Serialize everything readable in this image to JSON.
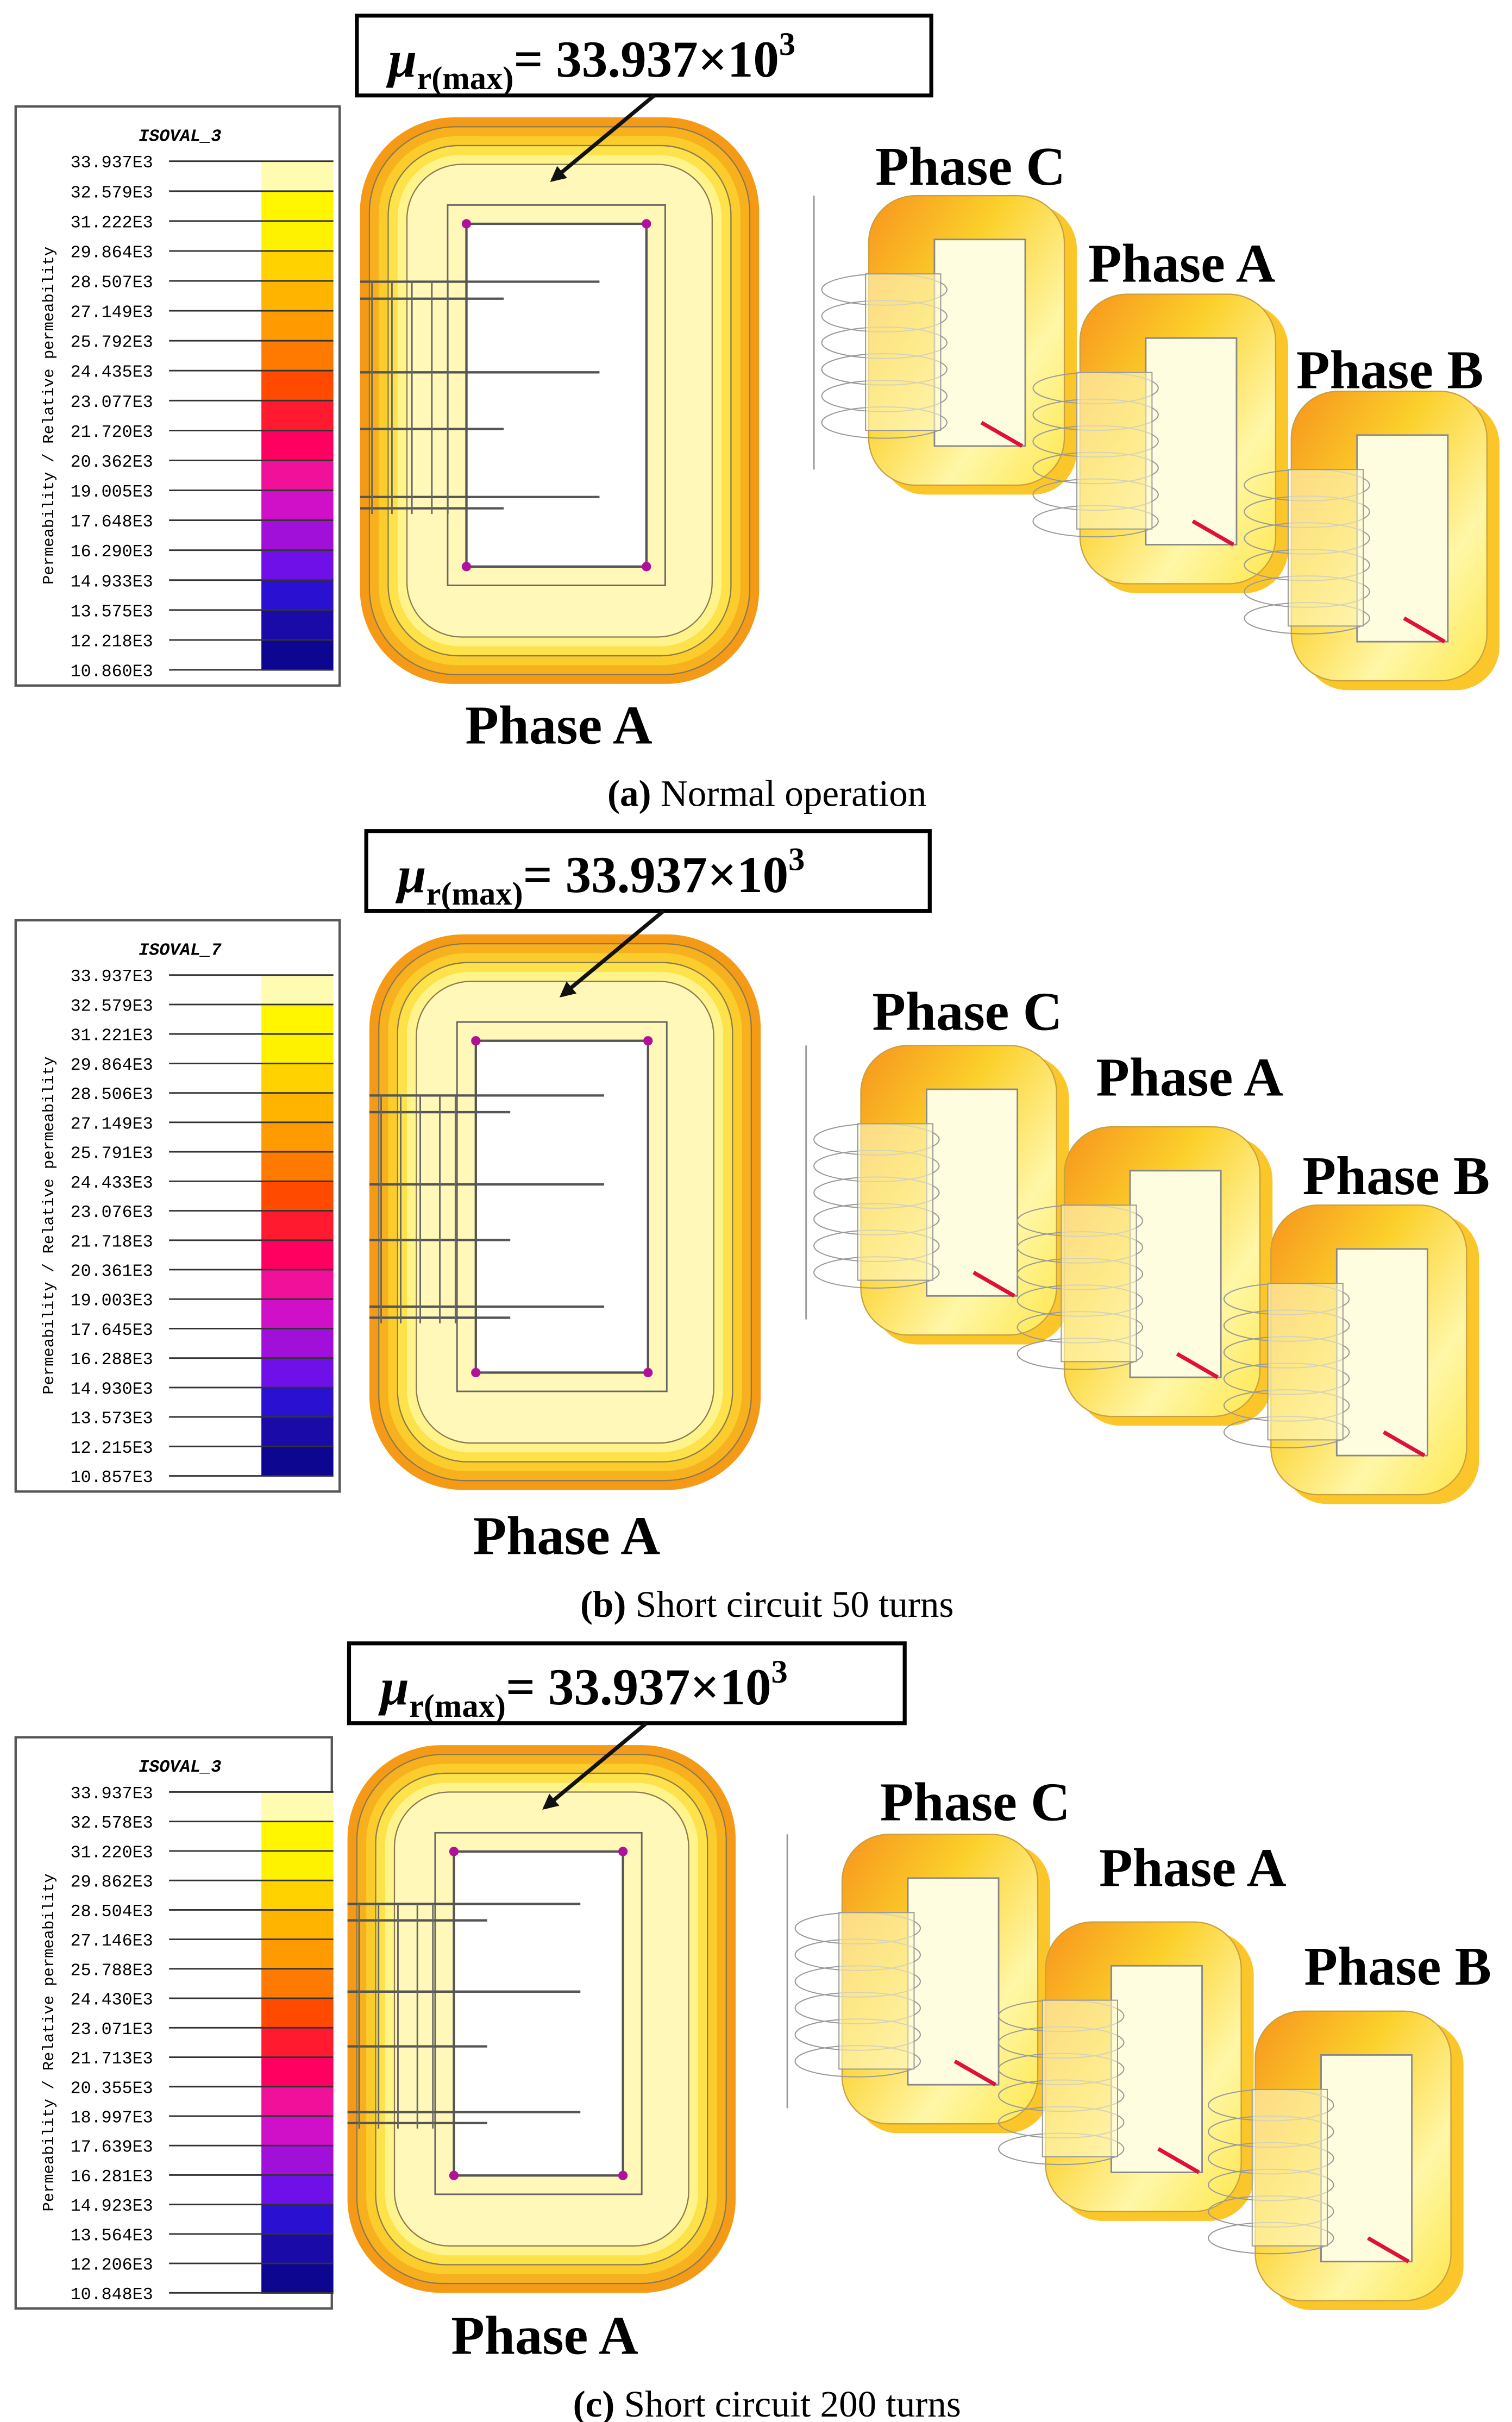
{
  "figure": {
    "panels": [
      {
        "legend": {
          "title": "ISOVAL_3",
          "axis_label": "Permeability / Relative permeability",
          "values": [
            "33.937E3",
            "32.579E3",
            "31.222E3",
            "29.864E3",
            "28.507E3",
            "27.149E3",
            "25.792E3",
            "24.435E3",
            "23.077E3",
            "21.720E3",
            "20.362E3",
            "19.005E3",
            "17.648E3",
            "16.290E3",
            "14.933E3",
            "13.575E3",
            "12.218E3",
            "10.860E3"
          ]
        },
        "annotation": {
          "symbol": "μ",
          "subscript": "r(max)",
          "value": "= 33.937×10",
          "superscript": "3"
        },
        "core_label": "Phase A",
        "phase_labels": [
          "Phase C",
          "Phase A",
          "Phase B"
        ],
        "caption": {
          "label": "(a)",
          "text": "Normal operation"
        }
      },
      {
        "legend": {
          "title": "ISOVAL_7",
          "axis_label": "Permeability / Relative permeability",
          "values": [
            "33.937E3",
            "32.579E3",
            "31.221E3",
            "29.864E3",
            "28.506E3",
            "27.149E3",
            "25.791E3",
            "24.433E3",
            "23.076E3",
            "21.718E3",
            "20.361E3",
            "19.003E3",
            "17.645E3",
            "16.288E3",
            "14.930E3",
            "13.573E3",
            "12.215E3",
            "10.857E3"
          ]
        },
        "annotation": {
          "symbol": "μ",
          "subscript": "r(max)",
          "value": "= 33.937×10",
          "superscript": "3"
        },
        "core_label": "Phase A",
        "phase_labels": [
          "Phase C",
          "Phase A",
          "Phase B"
        ],
        "caption": {
          "label": "(b)",
          "text": "Short circuit 50 turns"
        }
      },
      {
        "legend": {
          "title": "ISOVAL_3",
          "axis_label": "Permeability / Relative permeability",
          "values": [
            "33.937E3",
            "32.578E3",
            "31.220E3",
            "29.862E3",
            "28.504E3",
            "27.146E3",
            "25.788E3",
            "24.430E3",
            "23.071E3",
            "21.713E3",
            "20.355E3",
            "18.997E3",
            "17.639E3",
            "16.281E3",
            "14.923E3",
            "13.564E3",
            "12.206E3",
            "10.848E3"
          ]
        },
        "annotation": {
          "symbol": "μ",
          "subscript": "r(max)",
          "value": "= 33.937×10",
          "superscript": "3"
        },
        "core_label": "Phase A",
        "phase_labels": [
          "Phase C",
          "Phase A",
          "Phase B"
        ],
        "caption": {
          "label": "(c)",
          "text": "Short circuit 200 turns"
        }
      }
    ]
  }
}
